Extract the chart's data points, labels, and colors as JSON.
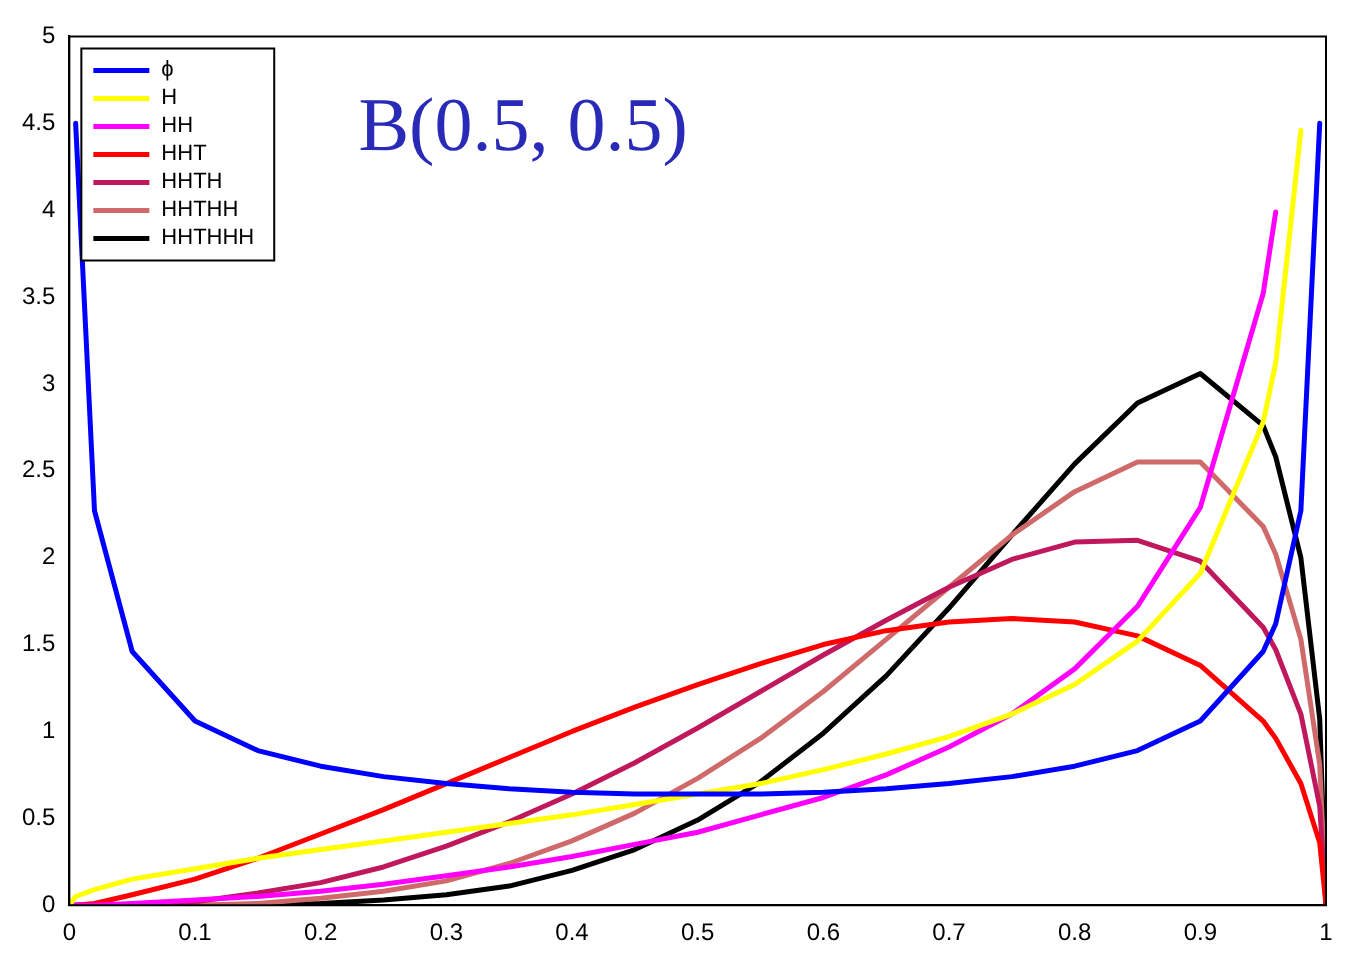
{
  "chart_data": {
    "type": "line",
    "annotations": [
      "B(0.5, 0.5)"
    ],
    "x": [
      0,
      0.005,
      0.02,
      0.05,
      0.1,
      0.15,
      0.2,
      0.25,
      0.3,
      0.35,
      0.4,
      0.45,
      0.5,
      0.55,
      0.6,
      0.65,
      0.7,
      0.75,
      0.8,
      0.85,
      0.9,
      0.95,
      0.96,
      0.98,
      0.995,
      1
    ],
    "series": [
      {
        "name": "ϕ",
        "color": "#0000ff",
        "values": [
          null,
          4.5,
          2.27,
          1.46,
          1.06,
          0.89,
          0.8,
          0.74,
          0.7,
          0.67,
          0.65,
          0.64,
          0.64,
          0.64,
          0.65,
          0.67,
          0.7,
          0.74,
          0.8,
          0.89,
          1.06,
          1.46,
          1.62,
          2.27,
          4.5,
          null
        ]
      },
      {
        "name": "H",
        "color": "#ffff00",
        "values": [
          0,
          0.05,
          0.09,
          0.15,
          0.21,
          0.27,
          0.32,
          0.37,
          0.42,
          0.47,
          0.52,
          0.58,
          0.64,
          0.7,
          0.78,
          0.87,
          0.97,
          1.1,
          1.27,
          1.52,
          1.91,
          2.78,
          3.12,
          4.46,
          null,
          null
        ]
      },
      {
        "name": "HH",
        "color": "#ff00ff",
        "values": [
          0,
          0,
          0,
          0.01,
          0.03,
          0.05,
          0.08,
          0.12,
          0.17,
          0.22,
          0.28,
          0.35,
          0.42,
          0.52,
          0.62,
          0.75,
          0.91,
          1.1,
          1.36,
          1.72,
          2.29,
          3.52,
          3.99,
          null,
          null,
          null
        ]
      },
      {
        "name": "HHT",
        "color": "#ff0000",
        "values": [
          0,
          0,
          0.01,
          0.06,
          0.15,
          0.27,
          0.41,
          0.55,
          0.7,
          0.85,
          1,
          1.14,
          1.27,
          1.39,
          1.5,
          1.58,
          1.63,
          1.65,
          1.63,
          1.55,
          1.38,
          1.06,
          0.96,
          0.7,
          0.36,
          0
        ]
      },
      {
        "name": "HHTH",
        "color": "#c0185c",
        "values": [
          0,
          0,
          0,
          0,
          0.02,
          0.07,
          0.13,
          0.22,
          0.34,
          0.48,
          0.64,
          0.82,
          1.02,
          1.23,
          1.44,
          1.64,
          1.83,
          1.99,
          2.09,
          2.1,
          1.98,
          1.6,
          1.47,
          1.1,
          0.57,
          0
        ]
      },
      {
        "name": "HHTHH",
        "color": "#d06a6a",
        "values": [
          null,
          null,
          null,
          0,
          0,
          0.01,
          0.04,
          0.08,
          0.14,
          0.24,
          0.37,
          0.53,
          0.73,
          0.96,
          1.23,
          1.53,
          1.83,
          2.13,
          2.38,
          2.55,
          2.55,
          2.18,
          2.02,
          1.53,
          0.81,
          0
        ]
      },
      {
        "name": "HHTHHH",
        "color": "#000000",
        "values": [
          0,
          0,
          0,
          0,
          0,
          0,
          0.01,
          0.03,
          0.06,
          0.11,
          0.2,
          0.32,
          0.49,
          0.71,
          0.99,
          1.32,
          1.71,
          2.13,
          2.54,
          2.89,
          3.06,
          2.76,
          2.58,
          2,
          1.07,
          0
        ]
      }
    ],
    "xlim": [
      0,
      1
    ],
    "xticks": [
      0,
      0.1,
      0.2,
      0.3,
      0.4,
      0.5,
      0.6,
      0.7,
      0.8,
      0.9,
      1
    ],
    "ylim": [
      0,
      5
    ],
    "yticks": [
      0,
      0.5,
      1,
      1.5,
      2,
      2.5,
      3,
      3.5,
      4,
      4.5,
      5
    ],
    "grid": false,
    "legend": "top left",
    "marker": "none",
    "line_style": "solid"
  }
}
